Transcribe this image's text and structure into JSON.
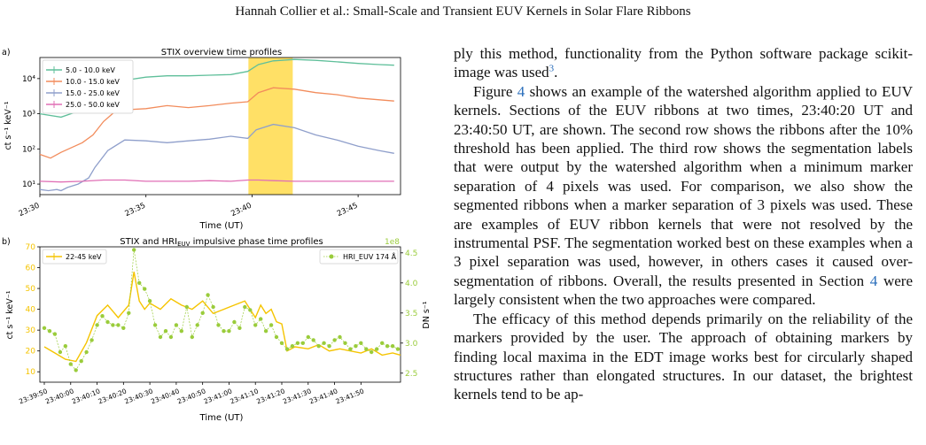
{
  "header": {
    "running_title": "Hannah Collier  et al.: Small-Scale and Transient EUV Kernels in Solar Flare Ribbons"
  },
  "body_text": {
    "para1": "ply this method, functionality from the Python software package scikit-image was used",
    "para1_footnote": "3",
    "para2_a": "Figure ",
    "para2_ref": "4",
    "para2_b": " shows an example of the watershed algorithm applied to EUV kernels. Sections of the EUV ribbons at two times, 23:40:20 UT and 23:40:50 UT, are shown. The second row shows the ribbons after the 10% threshold has been applied. The third row shows the segmentation labels that were output by the watershed algorithm when a minimum marker separation of 4 pixels was used. For comparison, we also show the segmented ribbons when a marker separation of 3 pixels was used. These are examples of EUV ribbon kernels that were not resolved by the instrumental PSF. The segmentation worked best on these examples when a 3 pixel separation was used, however, in others cases it caused over-segmentation of ribbons. Overall, the results presented in Section ",
    "para2_ref2": "4",
    "para2_c": " were largely consistent when the two approaches were compared.",
    "para3": "The efficacy of this method depends primarily on the reliability of the markers provided by the user. The approach of obtaining markers by finding local maxima in the EDT image works best for circularly shaped structures rather than elongated structures. In our dataset, the brightest kernels tend to be ap-"
  },
  "colors": {
    "s1": "#5fbf9a",
    "s2": "#f28c5c",
    "s3": "#8f9fcb",
    "s4": "#e06fb5",
    "stix_b": "#f5c400",
    "hri": "#9acc3b",
    "shade": "#ffe066"
  },
  "chart_data": [
    {
      "type": "line",
      "panel_label": "a)",
      "title": "STIX overview time profiles",
      "xlabel": "Time (UT)",
      "ylabel": "ct s⁻¹ keV⁻¹",
      "yscale": "log",
      "xlim": [
        0,
        17
      ],
      "ylim_log10": [
        0.7,
        4.6
      ],
      "x_tick_labels": [
        "23:30",
        "23:35",
        "23:40",
        "23:45"
      ],
      "x_tick_minutes": [
        0,
        5,
        10,
        15
      ],
      "y_tick_labels": [
        "10¹",
        "10²",
        "10³",
        "10⁴"
      ],
      "y_tick_exponents": [
        1,
        2,
        3,
        4
      ],
      "shaded_interval_minutes": [
        9.83,
        11.92
      ],
      "legend_location": "upper-left",
      "series": [
        {
          "name": "5.0 - 10.0 keV",
          "color": "#5fbf9a",
          "x": [
            0,
            1,
            2,
            3,
            4,
            5,
            6,
            7,
            8,
            9,
            9.8,
            10.3,
            11,
            12,
            13,
            14,
            15,
            16,
            16.7
          ],
          "y": [
            1000,
            800,
            1300,
            4200,
            9000,
            11000,
            12000,
            12000,
            12500,
            13000,
            16000,
            25000,
            32000,
            35000,
            33000,
            30000,
            27000,
            25000,
            24000
          ]
        },
        {
          "name": "10.0 - 15.0 keV",
          "color": "#f28c5c",
          "x": [
            0,
            0.5,
            1,
            2,
            2.5,
            3,
            3.5,
            4,
            5,
            6,
            7,
            8,
            9,
            9.8,
            10.3,
            11,
            12,
            13,
            14,
            15,
            16,
            16.7
          ],
          "y": [
            70,
            55,
            80,
            150,
            250,
            600,
            1100,
            1300,
            1400,
            1700,
            1500,
            1700,
            2000,
            2200,
            4000,
            5500,
            5000,
            4000,
            3500,
            2800,
            2500,
            2300
          ]
        },
        {
          "name": "15.0 - 25.0 keV",
          "color": "#8f9fcb",
          "x": [
            0,
            0.4,
            0.8,
            1,
            1.3,
            1.8,
            2.3,
            2.6,
            3.2,
            4,
            5,
            6,
            7,
            8,
            9,
            9.8,
            10.2,
            11,
            12,
            13,
            14,
            15,
            16,
            16.7
          ],
          "y": [
            7,
            6.5,
            7,
            6.5,
            8,
            10,
            15,
            30,
            90,
            180,
            170,
            150,
            170,
            190,
            230,
            200,
            350,
            500,
            400,
            250,
            180,
            120,
            90,
            75
          ]
        },
        {
          "name": "25.0 - 50.0 keV",
          "color": "#e06fb5",
          "x": [
            0,
            1,
            2,
            3,
            4,
            5,
            6,
            7,
            8,
            9,
            9.8,
            10.3,
            11,
            12,
            13,
            14,
            15,
            16,
            16.7
          ],
          "y": [
            12,
            11.5,
            12,
            13,
            13,
            12,
            12,
            12,
            12.5,
            12,
            13,
            13,
            12.5,
            12,
            12,
            12,
            12,
            12,
            12
          ]
        }
      ]
    },
    {
      "type": "line",
      "panel_label": "b)",
      "title_main": "STIX and HRI",
      "title_sub": "EUV",
      "title_rest": " impulsive phase time profiles",
      "xlabel": "Time (UT)",
      "ylabel_left": "ct s⁻¹ keV⁻¹",
      "ylabel_right": "DN s⁻¹",
      "right_axis_multiplier": "1e8",
      "xlim": [
        0,
        135
      ],
      "ylim_left": [
        5,
        70
      ],
      "ylim_right": [
        2.35,
        4.6
      ],
      "x_tick_labels": [
        "23:39:50",
        "23:40:00",
        "23:40:10",
        "23:40:20",
        "23:40:30",
        "23:40:40",
        "23:40:50",
        "23:41:00",
        "23:41:10",
        "23:41:20",
        "23:41:30",
        "23:41:40",
        "23:41:50"
      ],
      "x_tick_seconds": [
        0,
        10,
        20,
        30,
        40,
        50,
        60,
        70,
        80,
        90,
        100,
        110,
        120
      ],
      "y_left_tick_labels": [
        "10",
        "20",
        "30",
        "40",
        "50",
        "60",
        "70"
      ],
      "y_right_tick_labels": [
        "2.5",
        "3.0",
        "3.5",
        "4.0",
        "4.5"
      ],
      "legend_location_left": "upper-left",
      "legend_location_right": "upper-right",
      "series": [
        {
          "name": "22-45 keV",
          "axis": "left",
          "color": "#f5c400",
          "x": [
            0,
            4,
            8,
            12,
            16,
            20,
            24,
            28,
            32,
            34,
            36,
            38,
            40,
            44,
            48,
            52,
            56,
            60,
            64,
            68,
            72,
            76,
            80,
            82,
            84,
            86,
            88,
            90,
            92,
            95,
            100,
            104,
            108,
            112,
            116,
            120,
            124,
            128,
            132,
            135
          ],
          "y": [
            22,
            19,
            16,
            15,
            24,
            37,
            42,
            36,
            42,
            58,
            44,
            40,
            43,
            40,
            45,
            42,
            40,
            44,
            38,
            40,
            42,
            44,
            36,
            42,
            38,
            40,
            34,
            33,
            20,
            22,
            21,
            23,
            20,
            21,
            20,
            19,
            21,
            18,
            19,
            18
          ]
        },
        {
          "name": "HRI_EUV 174 Å",
          "axis": "right",
          "color": "#9acc3b",
          "x": [
            0,
            2,
            4,
            6,
            8,
            10,
            12,
            14,
            16,
            18,
            20,
            22,
            24,
            26,
            28,
            30,
            32,
            34,
            36,
            38,
            40,
            42,
            44,
            46,
            48,
            50,
            52,
            54,
            56,
            58,
            60,
            62,
            64,
            66,
            68,
            70,
            72,
            74,
            76,
            78,
            80,
            82,
            84,
            86,
            88,
            90,
            92,
            94,
            96,
            98,
            100,
            102,
            104,
            106,
            108,
            110,
            112,
            114,
            116,
            118,
            120,
            122,
            124,
            126,
            128,
            130,
            132,
            134
          ],
          "y": [
            3.25,
            3.2,
            3.15,
            2.85,
            2.95,
            2.65,
            2.55,
            2.7,
            2.85,
            3.05,
            3.3,
            3.45,
            3.35,
            3.3,
            3.3,
            3.25,
            3.5,
            4.55,
            4.0,
            3.9,
            3.7,
            3.3,
            3.1,
            3.2,
            3.1,
            3.3,
            3.2,
            3.6,
            3.1,
            3.3,
            3.5,
            3.8,
            3.6,
            3.3,
            3.2,
            3.2,
            3.35,
            3.25,
            3.6,
            3.55,
            3.3,
            3.4,
            3.2,
            3.3,
            3.1,
            3.0,
            2.9,
            2.95,
            3.0,
            3.0,
            3.1,
            3.05,
            2.95,
            3.0,
            2.95,
            3.05,
            3.1,
            3.0,
            2.9,
            2.95,
            3.0,
            2.9,
            2.85,
            2.9,
            3.0,
            2.95,
            2.95,
            2.9
          ]
        }
      ]
    }
  ]
}
